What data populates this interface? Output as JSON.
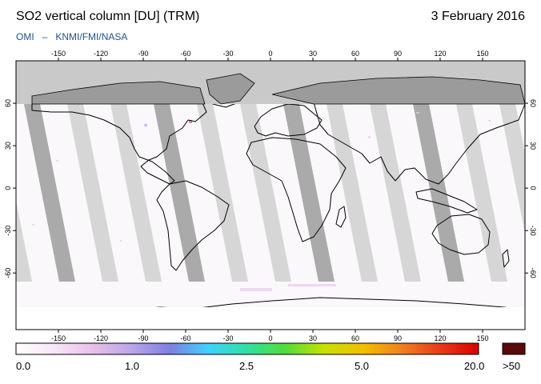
{
  "header": {
    "title": "SO2 vertical column [DU] (TRM)",
    "date": "3 February 2016",
    "credit_left": "OMI",
    "credit_sep": "–",
    "credit_right": "KNMI/FMI/NASA"
  },
  "map": {
    "lon_ticks": [
      "-150",
      "-120",
      "-90",
      "-60",
      "-30",
      "0",
      "30",
      "60",
      "90",
      "120",
      "150"
    ],
    "lat_ticks": [
      "60",
      "30",
      "0",
      "-30",
      "-60"
    ]
  },
  "colorbar": {
    "labels": [
      "0.0",
      "1.0",
      "2.5",
      "5.0",
      "20.0"
    ],
    "overflow_label": ">50",
    "overflow_color": "#5a0a0a",
    "gradient_colors": [
      "#ffffff",
      "#f6e6f6",
      "#e8bfe8",
      "#b9a6e6",
      "#7f7fe0",
      "#3fd2ff",
      "#2fe0a0",
      "#52dc3a",
      "#c8e000",
      "#f0c000",
      "#f08020",
      "#e83a1a",
      "#d80000"
    ]
  }
}
